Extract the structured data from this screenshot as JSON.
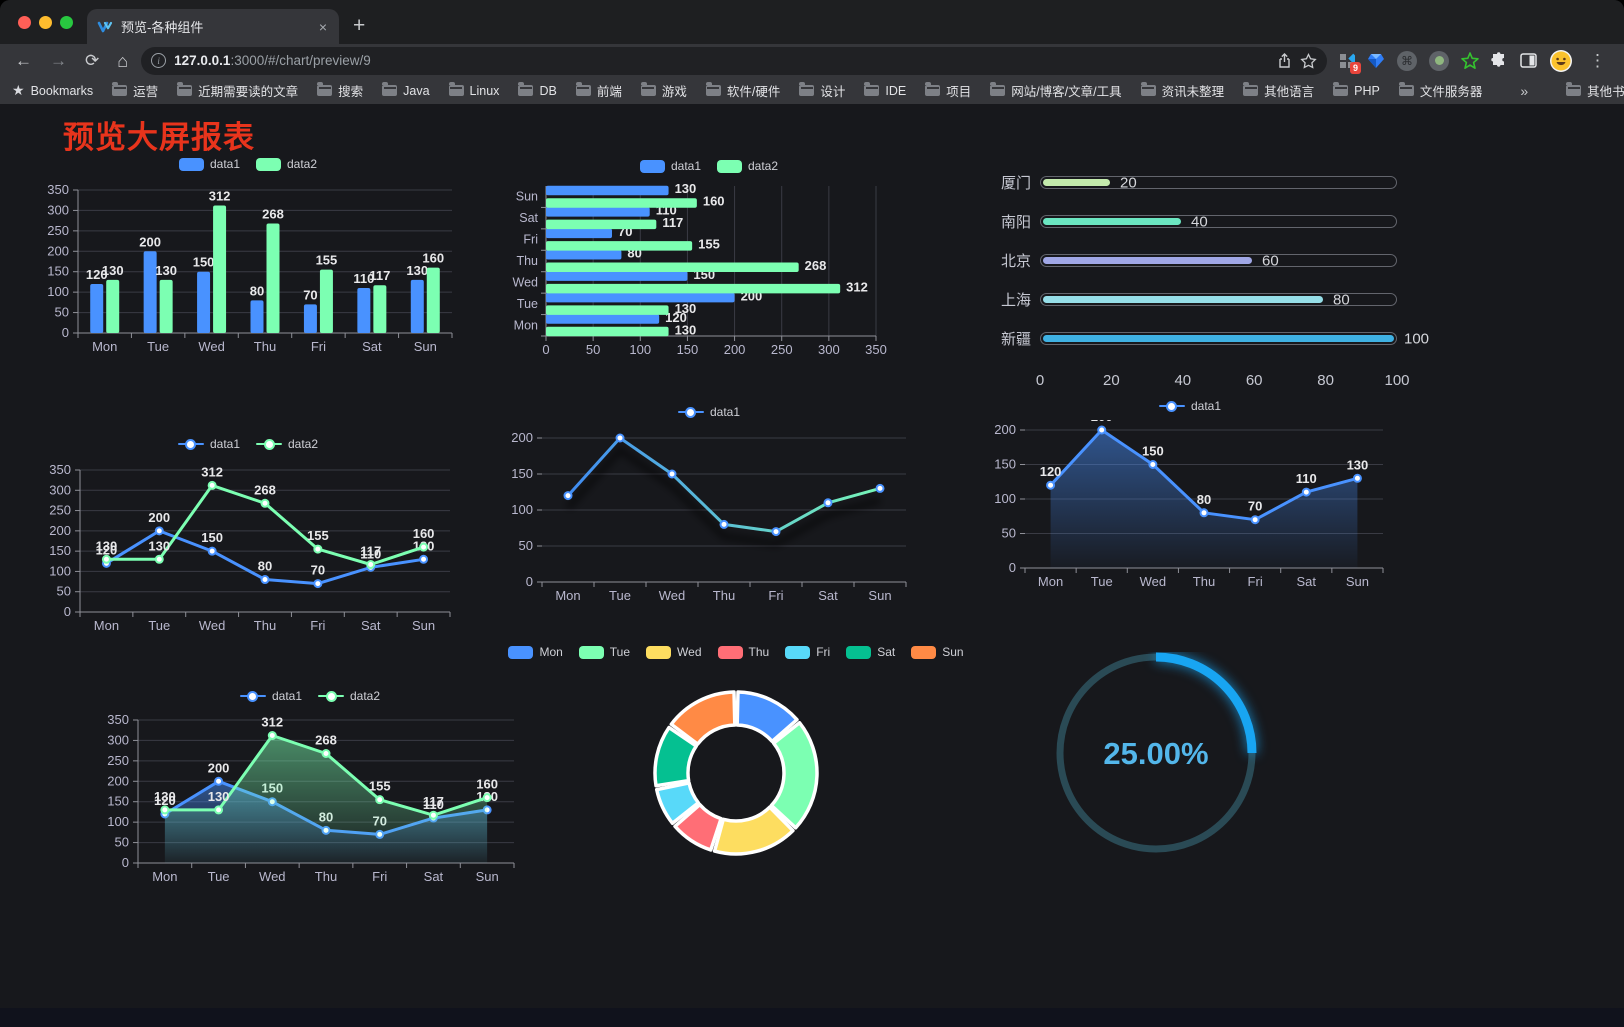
{
  "browser": {
    "tab_title": "预览-各种组件",
    "close_glyph": "×",
    "new_tab_glyph": "+",
    "url_host": "127.0.0.1",
    "url_rest": ":3000/#/chart/preview/9",
    "extension_badge": "9",
    "bookmarks_label": "Bookmarks",
    "bookmarks": [
      "运营",
      "近期需要读的文章",
      "搜索",
      "Java",
      "Linux",
      "DB",
      "前端",
      "游戏",
      "软件/硬件",
      "设计",
      "IDE",
      "项目",
      "网站/博客/文章/工具",
      "资讯未整理",
      "其他语言",
      "PHP",
      "文件服务器"
    ],
    "bookmarks_overflow": "»",
    "other_bookmarks": "其他书签",
    "traffic_colors": {
      "close": "#ff5f57",
      "minimize": "#febc2e",
      "zoom": "#28c840"
    }
  },
  "page": {
    "title": "预览大屏报表",
    "title_color": "#e8341c",
    "background": "#17181c"
  },
  "chart_data": [
    {
      "id": "grouped-bar",
      "type": "bar",
      "categories": [
        "Mon",
        "Tue",
        "Wed",
        "Thu",
        "Fri",
        "Sat",
        "Sun"
      ],
      "series": [
        {
          "name": "data1",
          "color": "#4992ff",
          "values": [
            120,
            200,
            150,
            80,
            70,
            110,
            130
          ]
        },
        {
          "name": "data2",
          "color": "#7cffb2",
          "values": [
            130,
            130,
            312,
            268,
            155,
            117,
            160
          ]
        }
      ],
      "ylim": [
        0,
        350
      ],
      "yticks": [
        0,
        50,
        100,
        150,
        200,
        250,
        300,
        350
      ],
      "point_labels": true,
      "y_axis_line": true,
      "legend_icon": "rect",
      "legend_position": "top",
      "grid": true
    },
    {
      "id": "grouped-bar-horizontal",
      "type": "bar-horizontal",
      "categories": [
        "Mon",
        "Tue",
        "Wed",
        "Thu",
        "Fri",
        "Sat",
        "Sun"
      ],
      "series": [
        {
          "name": "data1",
          "color": "#4992ff",
          "values": [
            120,
            200,
            150,
            80,
            70,
            110,
            130
          ]
        },
        {
          "name": "data2",
          "color": "#7cffb2",
          "values": [
            130,
            130,
            312,
            268,
            155,
            117,
            160
          ]
        }
      ],
      "xlim": [
        0,
        350
      ],
      "xticks": [
        0,
        50,
        100,
        150,
        200,
        250,
        300,
        350
      ],
      "point_labels": true,
      "legend_icon": "rect",
      "legend_position": "top",
      "grid": true
    },
    {
      "id": "city-progress",
      "type": "progress-bars",
      "max": 100,
      "items": [
        {
          "label": "厦门",
          "value": 20,
          "color": "#c4ebad"
        },
        {
          "label": "南阳",
          "value": 40,
          "color": "#6be6c1"
        },
        {
          "label": "北京",
          "value": 60,
          "color": "#a0a7e6"
        },
        {
          "label": "上海",
          "value": 80,
          "color": "#96dee8"
        },
        {
          "label": "新疆",
          "value": 100,
          "color": "#3fb1e3"
        }
      ],
      "axis_ticks": [
        0,
        20,
        40,
        60,
        80,
        100
      ]
    },
    {
      "id": "two-line",
      "type": "line",
      "categories": [
        "Mon",
        "Tue",
        "Wed",
        "Thu",
        "Fri",
        "Sat",
        "Sun"
      ],
      "series": [
        {
          "name": "data1",
          "color": "#4992ff",
          "values": [
            120,
            200,
            150,
            80,
            70,
            110,
            130
          ]
        },
        {
          "name": "data2",
          "color": "#7cffb2",
          "values": [
            130,
            130,
            312,
            268,
            155,
            117,
            160
          ]
        }
      ],
      "ylim": [
        0,
        350
      ],
      "yticks": [
        0,
        50,
        100,
        150,
        200,
        250,
        300,
        350
      ],
      "point_labels": true,
      "y_axis_line": true,
      "legend_icon": "pin",
      "legend_position": "top",
      "grid": true
    },
    {
      "id": "gradient-line",
      "type": "line",
      "categories": [
        "Mon",
        "Tue",
        "Wed",
        "Thu",
        "Fri",
        "Sat",
        "Sun"
      ],
      "series": [
        {
          "name": "data1",
          "color": "#4992ff",
          "values": [
            120,
            200,
            150,
            80,
            70,
            110,
            130
          ],
          "line_gradient": [
            "#3b82f7",
            "#7cffb2"
          ],
          "shadow": true
        }
      ],
      "ylim": [
        0,
        200
      ],
      "yticks": [
        0,
        50,
        100,
        150,
        200
      ],
      "point_labels": false,
      "y_axis_line": false,
      "legend_icon": "pin",
      "legend_position": "top",
      "grid": true
    },
    {
      "id": "area-line",
      "type": "line",
      "categories": [
        "Mon",
        "Tue",
        "Wed",
        "Thu",
        "Fri",
        "Sat",
        "Sun"
      ],
      "series": [
        {
          "name": "data1",
          "color": "#4992ff",
          "values": [
            120,
            200,
            150,
            80,
            70,
            110,
            130
          ],
          "area": true
        }
      ],
      "ylim": [
        0,
        200
      ],
      "yticks": [
        0,
        50,
        100,
        150,
        200
      ],
      "point_labels": true,
      "y_axis_line": false,
      "legend_icon": "pin",
      "legend_position": "top",
      "grid": true
    },
    {
      "id": "two-line-area",
      "type": "line",
      "categories": [
        "Mon",
        "Tue",
        "Wed",
        "Thu",
        "Fri",
        "Sat",
        "Sun"
      ],
      "series": [
        {
          "name": "data1",
          "color": "#4992ff",
          "values": [
            120,
            200,
            150,
            80,
            70,
            110,
            130
          ],
          "area": true
        },
        {
          "name": "data2",
          "color": "#7cffb2",
          "values": [
            130,
            130,
            312,
            268,
            155,
            117,
            160
          ],
          "area": true
        }
      ],
      "ylim": [
        0,
        350
      ],
      "yticks": [
        0,
        50,
        100,
        150,
        200,
        250,
        300,
        350
      ],
      "point_labels": true,
      "y_axis_line": true,
      "legend_icon": "pin",
      "legend_position": "top",
      "grid": true
    },
    {
      "id": "donut",
      "type": "donut",
      "categories": [
        "Mon",
        "Tue",
        "Wed",
        "Thu",
        "Fri",
        "Sat",
        "Sun"
      ],
      "values": [
        120,
        200,
        150,
        80,
        70,
        110,
        130
      ],
      "colors": [
        "#4992ff",
        "#7cffb2",
        "#fddd60",
        "#ff6e76",
        "#58d9f9",
        "#05c091",
        "#ff8a45"
      ],
      "legend_icon": "rect",
      "legend_position": "top",
      "border_color": "#ffffff"
    },
    {
      "id": "gauge",
      "type": "gauge",
      "value": 25,
      "display": "25.00%",
      "progress_color": "#18a5f2",
      "track_color": "#2a4a55",
      "text_color": "#53b6ea"
    }
  ]
}
